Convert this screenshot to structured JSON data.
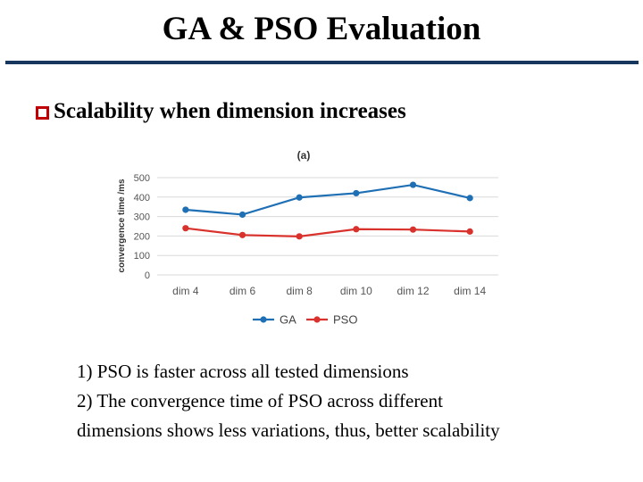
{
  "slide": {
    "title": "GA & PSO Evaluation",
    "bullet": "Scalability when dimension increases",
    "notes": [
      "1) PSO is faster across all tested dimensions",
      "2) The convergence time of PSO across different",
      "dimensions shows less variations, thus, better scalability"
    ]
  },
  "colors": {
    "title_rule": "#17375e",
    "bullet": "#c00000",
    "ga": "#1f6fb5",
    "pso": "#d9312b",
    "grid": "#d9d9d9"
  },
  "chart_data": {
    "type": "line",
    "title": "(a)",
    "xlabel": "",
    "ylabel": "convergence time /ms",
    "categories": [
      "dim 4",
      "dim 6",
      "dim 8",
      "dim 10",
      "dim 12",
      "dim 14"
    ],
    "ylim": [
      0,
      500
    ],
    "yticks": [
      0,
      100,
      200,
      300,
      400,
      500
    ],
    "grid": true,
    "legend": "bottom",
    "series": [
      {
        "name": "GA",
        "values": [
          335,
          310,
          398,
          420,
          463,
          395
        ]
      },
      {
        "name": "PSO",
        "values": [
          240,
          205,
          198,
          235,
          233,
          223
        ]
      }
    ]
  }
}
